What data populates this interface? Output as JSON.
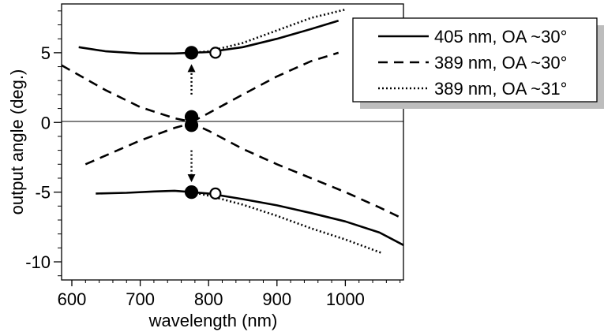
{
  "chart_data": {
    "type": "line",
    "title": "",
    "xlabel": "wavelength (nm)",
    "ylabel": "output angle (deg.)",
    "xlim": [
      585,
      1085
    ],
    "ylim": [
      -11.3,
      8.5
    ],
    "xticks": [
      600,
      700,
      800,
      900,
      1000
    ],
    "yticks": [
      -10,
      -5,
      0,
      5
    ],
    "ytick_labels": [
      "-10",
      "-5",
      "0",
      "5"
    ],
    "zero_line": true,
    "legend_position": "top-right",
    "series": [
      {
        "name": "405 nm, OA ~30°",
        "style": "solid",
        "branches": [
          {
            "x": [
              610,
              650,
              700,
              750,
              775,
              800,
              850,
              900,
              950,
              990
            ],
            "y": [
              5.4,
              5.1,
              4.95,
              4.95,
              5.0,
              5.05,
              5.4,
              6.0,
              6.7,
              7.3
            ]
          },
          {
            "x": [
              635,
              680,
              720,
              750,
              775,
              800,
              850,
              900,
              950,
              1000,
              1050,
              1085
            ],
            "y": [
              -5.1,
              -5.05,
              -4.95,
              -4.9,
              -5.0,
              -5.1,
              -5.5,
              -5.95,
              -6.5,
              -7.1,
              -7.9,
              -8.8
            ]
          }
        ]
      },
      {
        "name": "389 nm, OA ~30°",
        "style": "dashed",
        "branches": [
          {
            "x": [
              585,
              650,
              700,
              750,
              775,
              790,
              850,
              900,
              950,
              990
            ],
            "y": [
              4.1,
              2.3,
              1.1,
              0.3,
              0.05,
              0.4,
              2.0,
              3.3,
              4.4,
              5.0
            ]
          },
          {
            "x": [
              620,
              700,
              750,
              775,
              800,
              850,
              900,
              950,
              1000,
              1050,
              1080
            ],
            "y": [
              -3.0,
              -1.3,
              -0.4,
              -0.05,
              -0.6,
              -1.9,
              -3.0,
              -4.0,
              -5.0,
              -6.1,
              -6.8
            ]
          }
        ]
      },
      {
        "name": "389 nm, OA ~31°",
        "style": "dotted",
        "branches": [
          {
            "x": [
              775,
              800,
              850,
              900,
              950,
              1000
            ],
            "y": [
              5.0,
              5.1,
              5.7,
              6.6,
              7.5,
              8.1
            ]
          },
          {
            "x": [
              775,
              800,
              850,
              900,
              950,
              1000,
              1055
            ],
            "y": [
              -5.0,
              -5.25,
              -5.9,
              -6.7,
              -7.6,
              -8.4,
              -9.4
            ]
          }
        ]
      }
    ],
    "markers": [
      {
        "type": "filled-circle",
        "x": 775,
        "y": 5.0
      },
      {
        "type": "filled-circle",
        "x": 775,
        "y": 0.4
      },
      {
        "type": "filled-circle",
        "x": 775,
        "y": -0.2
      },
      {
        "type": "filled-circle",
        "x": 775,
        "y": -5.0
      },
      {
        "type": "open-circle",
        "x": 810,
        "y": 5.0
      },
      {
        "type": "open-circle",
        "x": 810,
        "y": -5.1
      }
    ],
    "arrows": [
      {
        "x": 775,
        "from": 2.0,
        "to": 3.9
      },
      {
        "x": 775,
        "from": -2.0,
        "to": -4.0
      }
    ]
  }
}
